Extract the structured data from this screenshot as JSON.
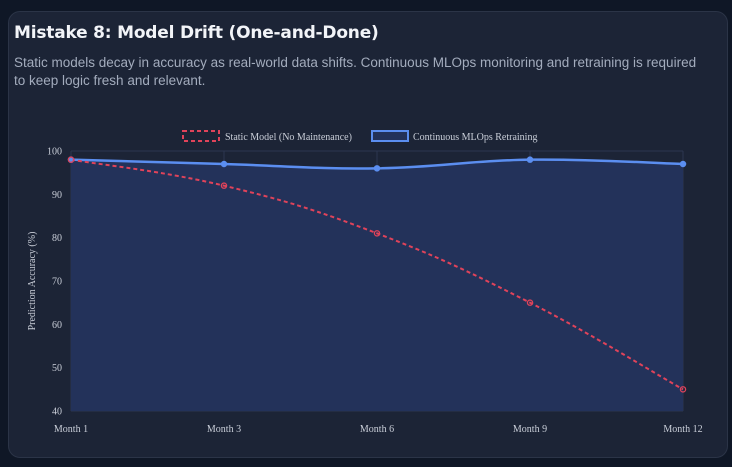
{
  "header": {
    "title": "Mistake 8: Model Drift (One-and-Done)",
    "subtitle": "Static models decay in accuracy as real-world data shifts. Continuous MLOps monitoring and retraining is required to keep logic fresh and relevant."
  },
  "chart_data": {
    "type": "line",
    "categories": [
      "Month 1",
      "Month 3",
      "Month 6",
      "Month 9",
      "Month 12"
    ],
    "series": [
      {
        "name": "Static Model (No Maintenance)",
        "values": [
          98,
          92,
          81,
          65,
          45
        ],
        "color": "#e0435a",
        "style": "dashed",
        "fill": false
      },
      {
        "name": "Continuous MLOps Retraining",
        "values": [
          98,
          97,
          96,
          98,
          97
        ],
        "color": "#5b8ef0",
        "style": "solid",
        "fill": true,
        "fill_color": "#23325a"
      }
    ],
    "xlabel": "",
    "ylabel": "Prediction Accuracy (%)",
    "ylim": [
      40,
      100
    ],
    "yticks": [
      40,
      50,
      60,
      70,
      80,
      90,
      100
    ],
    "grid": true,
    "legend": "top-center",
    "curve": "smooth"
  }
}
